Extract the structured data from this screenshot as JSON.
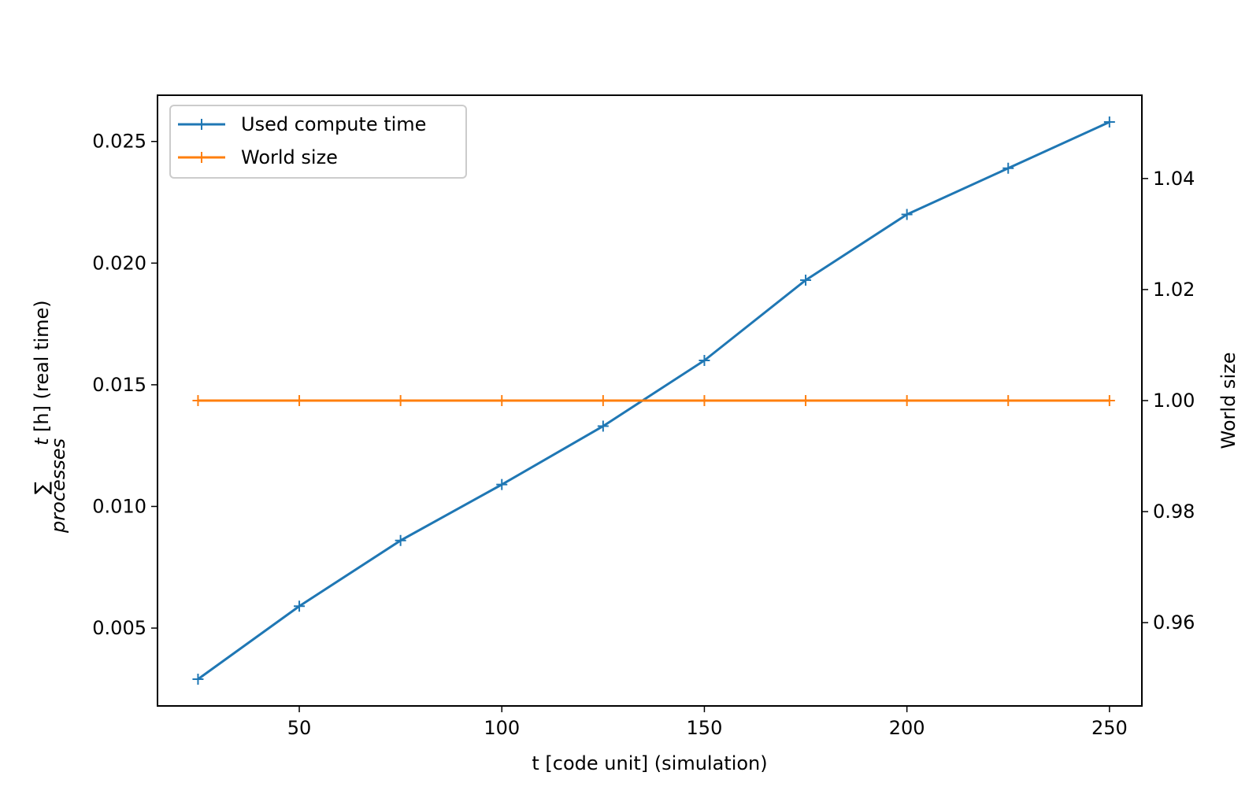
{
  "chart_data": {
    "type": "line",
    "title": "",
    "xlabel": "t [code unit] (simulation)",
    "ylabel": {
      "symbol": "∑",
      "subscript": "processes",
      "variable": "t",
      "rest": " [h] (real time)"
    },
    "y2label": "World size",
    "xlim": [
      15,
      258
    ],
    "ylim": [
      0.0018,
      0.0269
    ],
    "y2lim": [
      0.945,
      1.055
    ],
    "xticks": [
      50,
      100,
      150,
      200,
      250
    ],
    "yticks": [
      0.005,
      0.01,
      0.015,
      0.02,
      0.025
    ],
    "yticks_labels": [
      "0.005",
      "0.010",
      "0.015",
      "0.020",
      "0.025"
    ],
    "y2ticks": [
      0.96,
      0.98,
      1.0,
      1.02,
      1.04
    ],
    "y2ticks_labels": [
      "0.96",
      "0.98",
      "1.00",
      "1.02",
      "1.04"
    ],
    "grid": false,
    "legend_position": "top-left",
    "series": [
      {
        "name": "Used compute time",
        "axis": "left",
        "color": "#1f77b4",
        "marker": "+",
        "x": [
          25,
          50,
          75,
          100,
          125,
          150,
          175,
          200,
          225,
          250
        ],
        "y": [
          0.0029,
          0.0059,
          0.0086,
          0.0109,
          0.0133,
          0.016,
          0.0193,
          0.022,
          0.0239,
          0.0258
        ]
      },
      {
        "name": "World size",
        "axis": "right",
        "color": "#ff7f0e",
        "marker": "+",
        "x": [
          25,
          50,
          75,
          100,
          125,
          150,
          175,
          200,
          225,
          250
        ],
        "y": [
          1.0,
          1.0,
          1.0,
          1.0,
          1.0,
          1.0,
          1.0,
          1.0,
          1.0,
          1.0
        ]
      }
    ]
  }
}
